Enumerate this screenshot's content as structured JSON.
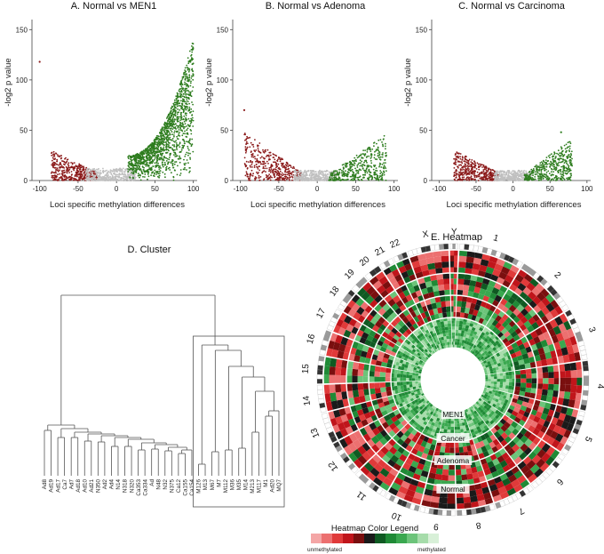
{
  "chart_data": [
    {
      "type": "scatter",
      "title": "A. Normal vs MEN1",
      "xlabel": "Loci specific methylation differences",
      "ylabel": "-log2 p value",
      "xlim": [
        -110,
        105
      ],
      "ylim": [
        0,
        160
      ],
      "xticks": [
        "-100",
        "-50",
        "0",
        "50",
        "100"
      ],
      "yticks": [
        "0",
        "50",
        "100",
        "150"
      ],
      "series": [
        {
          "name": "hypomethylated",
          "color": "#8b1a1a",
          "x_range": [
            -85,
            -25
          ],
          "max_y": 30
        },
        {
          "name": "not significant",
          "color": "#c0c0c0",
          "x_range": [
            -40,
            25
          ],
          "max_y": 12
        },
        {
          "name": "hypermethylated",
          "color": "#2e7d1f",
          "x_range": [
            15,
            100
          ],
          "max_y": 142
        }
      ],
      "outliers": [
        {
          "x": -100,
          "y": 118
        }
      ]
    },
    {
      "type": "scatter",
      "title": "B. Normal vs Adenoma",
      "xlabel": "Loci specific methylation differences",
      "ylabel": "-log2 p value",
      "xlim": [
        -110,
        105
      ],
      "ylim": [
        0,
        160
      ],
      "xticks": [
        "-100",
        "-50",
        "0",
        "50",
        "100"
      ],
      "yticks": [
        "0",
        "50",
        "100",
        "150"
      ],
      "series": [
        {
          "name": "hypomethylated",
          "color": "#8b1a1a",
          "x_range": [
            -95,
            -20
          ],
          "max_y": 48
        },
        {
          "name": "not significant",
          "color": "#c0c0c0",
          "x_range": [
            -30,
            25
          ],
          "max_y": 10
        },
        {
          "name": "hypermethylated",
          "color": "#2e7d1f",
          "x_range": [
            15,
            90
          ],
          "max_y": 46
        }
      ],
      "outliers": [
        {
          "x": -95,
          "y": 70
        }
      ]
    },
    {
      "type": "scatter",
      "title": "C. Normal vs Carcinoma",
      "xlabel": "Loci specific methylation differences",
      "ylabel": "-log2 p value",
      "xlim": [
        -110,
        105
      ],
      "ylim": [
        0,
        160
      ],
      "xticks": [
        "-100",
        "-50",
        "0",
        "50",
        "100"
      ],
      "yticks": [
        "0",
        "50",
        "100",
        "150"
      ],
      "series": [
        {
          "name": "hypomethylated",
          "color": "#8b1a1a",
          "x_range": [
            -80,
            -20
          ],
          "max_y": 30
        },
        {
          "name": "not significant",
          "color": "#c0c0c0",
          "x_range": [
            -25,
            25
          ],
          "max_y": 10
        },
        {
          "name": "hypermethylated",
          "color": "#2e7d1f",
          "x_range": [
            15,
            80
          ],
          "max_y": 42
        }
      ],
      "outliers": [
        {
          "x": 65,
          "y": 48
        }
      ]
    },
    {
      "type": "dendrogram",
      "title": "D. Cluster",
      "leaves": [
        "Ad8",
        "Ad19",
        "Ad17",
        "Ca7",
        "Ad7",
        "Ad18",
        "Ad10",
        "Ad21",
        "N350",
        "Ad2",
        "Ad4",
        "N14",
        "N318",
        "N320",
        "Ca353",
        "Ca334",
        "Ad",
        "N48",
        "N32",
        "N375",
        "Ca12",
        "Ca155",
        "Ca154",
        "M126",
        "M13",
        "M67",
        "M7",
        "M112",
        "M36",
        "M35",
        "M14",
        "M213",
        "M117",
        "M1",
        "Ad20",
        "MQ7"
      ],
      "highlighted_cluster": "MEN1 samples"
    },
    {
      "type": "circular-heatmap",
      "title": "E. Heatmap",
      "chromosomes": [
        "1",
        "2",
        "3",
        "4",
        "5",
        "6",
        "7",
        "8",
        "9",
        "10",
        "11",
        "12",
        "13",
        "14",
        "15",
        "16",
        "17",
        "18",
        "19",
        "20",
        "21",
        "22",
        "X",
        "Y"
      ],
      "rings": [
        "MEN1",
        "Cancer",
        "Adenoma",
        "Normal"
      ],
      "legend_title": "Heatmap Color Legend",
      "legend_low": "unmethylated",
      "legend_high": "methylated",
      "legend_colors": [
        "#f4a6a6",
        "#ec7070",
        "#e03a3a",
        "#c0151b",
        "#7a0f0f",
        "#1a1a1a",
        "#0f5a22",
        "#1f8a36",
        "#3aa84f",
        "#6cc47a",
        "#a6dcaa",
        "#d8f0d8"
      ]
    }
  ]
}
